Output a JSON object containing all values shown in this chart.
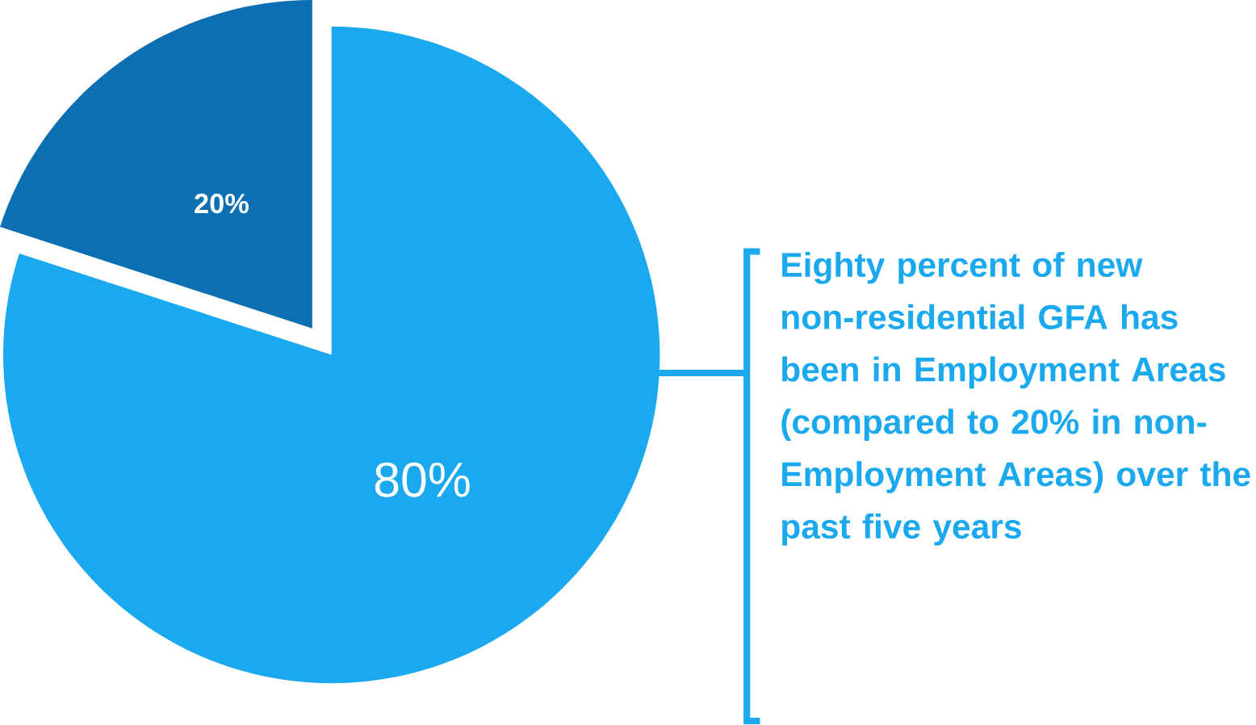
{
  "chart_data": {
    "type": "pie",
    "categories": [
      null,
      null
    ],
    "values": [
      80,
      20
    ],
    "colors": [
      "#1aa8ee",
      "#0b6fb1"
    ],
    "value_labels": [
      "80%",
      "20%"
    ],
    "annotations": [
      "Eighty percent of new non-residential GFA has been in Employment Areas (compared to 20% in non-Employment Areas) over the past five years"
    ]
  }
}
